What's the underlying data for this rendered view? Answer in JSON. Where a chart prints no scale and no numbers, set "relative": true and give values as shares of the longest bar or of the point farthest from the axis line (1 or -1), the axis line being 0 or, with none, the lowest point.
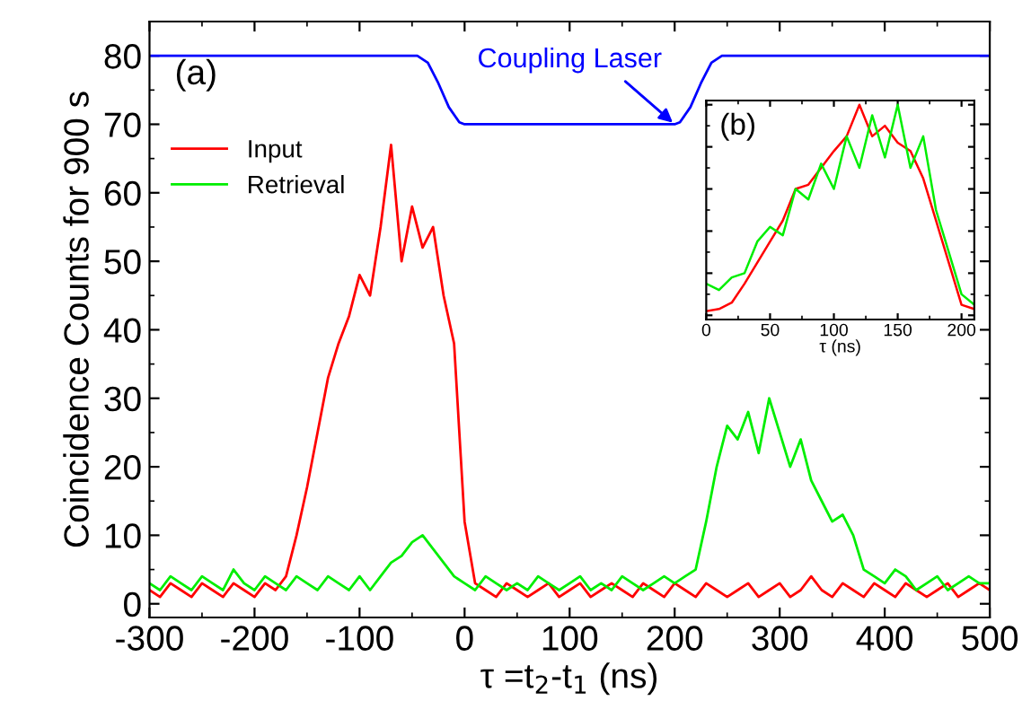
{
  "chart_data": [
    {
      "type": "line",
      "xlabel": "τ =t$_{2}$-t$_{1}$ (ns)",
      "ylabel": "Coincidence Counts for 900 s",
      "x": [
        -300,
        -290,
        -280,
        -270,
        -260,
        -250,
        -240,
        -230,
        -220,
        -210,
        -200,
        -190,
        -180,
        -170,
        -160,
        -150,
        -140,
        -130,
        -120,
        -110,
        -100,
        -90,
        -80,
        -70,
        -60,
        -50,
        -40,
        -30,
        -20,
        -10,
        0,
        10,
        20,
        30,
        40,
        50,
        60,
        70,
        80,
        90,
        100,
        110,
        120,
        130,
        140,
        150,
        160,
        170,
        180,
        190,
        200,
        210,
        220,
        230,
        240,
        250,
        260,
        270,
        280,
        290,
        300,
        310,
        320,
        330,
        340,
        350,
        360,
        370,
        380,
        390,
        400,
        410,
        420,
        430,
        440,
        450,
        460,
        470,
        480,
        490,
        500
      ],
      "series": [
        {
          "name": "Input",
          "color": "#ff0000",
          "values": [
            2,
            1,
            3,
            2,
            1,
            3,
            2,
            1,
            3,
            2,
            1,
            3,
            2,
            4,
            10,
            17,
            25,
            33,
            38,
            42,
            48,
            45,
            55,
            67,
            50,
            58,
            52,
            55,
            45,
            38,
            12,
            3,
            2,
            1,
            3,
            2,
            1,
            2,
            3,
            1,
            2,
            3,
            1,
            2,
            3,
            2,
            1,
            3,
            2,
            1,
            3,
            2,
            1,
            3,
            2,
            1,
            2,
            3,
            1,
            2,
            3,
            1,
            2,
            4,
            2,
            1,
            3,
            2,
            1,
            3,
            2,
            1,
            3,
            2,
            1,
            2,
            3,
            1,
            2,
            3,
            2
          ]
        },
        {
          "name": "Retrieval",
          "color": "#00ee00",
          "values": [
            3,
            2,
            4,
            3,
            2,
            4,
            3,
            2,
            5,
            3,
            2,
            4,
            3,
            2,
            4,
            3,
            2,
            4,
            3,
            2,
            4,
            2,
            4,
            6,
            7,
            9,
            10,
            8,
            6,
            4,
            3,
            2,
            4,
            3,
            2,
            3,
            2,
            4,
            3,
            2,
            3,
            4,
            2,
            3,
            2,
            4,
            3,
            2,
            3,
            4,
            3,
            4,
            5,
            12,
            20,
            26,
            24,
            28,
            22,
            30,
            25,
            20,
            24,
            18,
            15,
            12,
            13,
            10,
            5,
            4,
            3,
            5,
            4,
            2,
            3,
            4,
            2,
            3,
            4,
            3,
            3
          ]
        },
        {
          "color": "#0000ff",
          "x": [
            -300,
            -45,
            -35,
            -25,
            -15,
            -5,
            0,
            200,
            205,
            215,
            225,
            235,
            245,
            500
          ],
          "values": [
            80,
            80,
            79,
            76,
            72.5,
            70.3,
            70,
            70,
            70.3,
            72.5,
            76,
            79,
            80,
            80
          ]
        }
      ],
      "xlim": [
        -300,
        500
      ],
      "ylim": [
        -2,
        85
      ],
      "xticks": [
        -300,
        -200,
        -100,
        0,
        100,
        200,
        300,
        400,
        500
      ],
      "yticks": [
        0,
        10,
        20,
        30,
        40,
        50,
        60,
        70,
        80
      ],
      "legend": "top left",
      "grid": false,
      "marker": "none",
      "line_style": "solid",
      "annotations": [
        "(a)",
        {
          "text": "Coupling Laser",
          "x": 200,
          "y": 70
        }
      ]
    },
    {
      "type": "line",
      "xlabel": "τ (ns)",
      "relative": true,
      "tick_labels": "x",
      "x": [
        0,
        10,
        20,
        30,
        40,
        50,
        60,
        70,
        80,
        90,
        100,
        110,
        120,
        130,
        140,
        150,
        160,
        170,
        180,
        190,
        200,
        210
      ],
      "series": [
        {
          "color": "#ff0000",
          "values": [
            0.02,
            0.03,
            0.06,
            0.15,
            0.25,
            0.35,
            0.45,
            0.6,
            0.62,
            0.7,
            0.78,
            0.85,
            1.0,
            0.85,
            0.9,
            0.82,
            0.78,
            0.65,
            0.45,
            0.25,
            0.05,
            0.03
          ]
        },
        {
          "color": "#00ee00",
          "values": [
            0.15,
            0.12,
            0.18,
            0.2,
            0.35,
            0.42,
            0.38,
            0.6,
            0.55,
            0.72,
            0.6,
            0.85,
            0.7,
            0.95,
            0.75,
            1.0,
            0.7,
            0.85,
            0.5,
            0.3,
            0.1,
            0.05
          ]
        }
      ],
      "xlim": [
        0,
        210
      ],
      "xticks": [
        0,
        50,
        100,
        150,
        200
      ],
      "grid": false,
      "marker": "none",
      "line_style": "solid",
      "annotations": [
        "(b)"
      ]
    }
  ]
}
